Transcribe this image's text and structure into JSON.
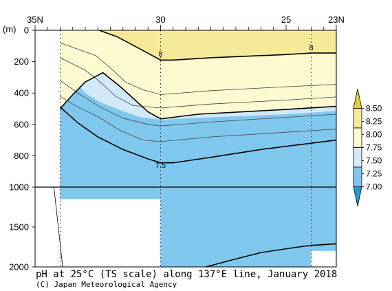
{
  "chart_data": {
    "type": "section-contour",
    "title": "pH at 25°C (TS scale) along 137°E line, January 2018",
    "credit": "(C) Japan Meteorological Agency",
    "ylabel": "(m)",
    "x_ticks": [
      {
        "lat": 35,
        "label": "35N"
      },
      {
        "lat": 30,
        "label": "30"
      },
      {
        "lat": 25,
        "label": "25"
      },
      {
        "lat": 23,
        "label": "23N"
      }
    ],
    "xlim": [
      35,
      23
    ],
    "y_ticks_upper": [
      0,
      200,
      400,
      600,
      800,
      1000
    ],
    "y_ticks_lower": [
      1500,
      2000
    ],
    "y_break": 1000,
    "stations_lat": [
      34,
      30,
      24
    ],
    "colorbar": {
      "levels": [
        "8.50",
        "8.25",
        "8.00",
        "7.75",
        "7.50",
        "7.25",
        "7.00"
      ],
      "colors": [
        "#e8d230",
        "#f5e99a",
        "#fdf9d0",
        "#d3e9f7",
        "#80c7ee",
        "#1e9ed8"
      ]
    },
    "fill_colors": {
      "above_8_25": "#f5e99a",
      "from_8_00_to_8_25": "#fdf9d0",
      "from_7_75_to_8_00": "#d3e9f7",
      "from_7_50_to_7_75": "#80c7ee"
    },
    "contours": [
      {
        "level": "8",
        "label": "8",
        "points": [
          [
            32.45,
            0
          ],
          [
            31.75,
            40
          ],
          [
            30.8,
            120
          ],
          [
            30,
            190
          ],
          [
            29.5,
            190
          ],
          [
            28,
            175
          ],
          [
            25,
            155
          ],
          [
            24,
            145
          ],
          [
            23,
            145
          ]
        ]
      },
      {
        "level": "7.75",
        "points": [
          [
            34,
            500
          ],
          [
            33.5,
            410
          ],
          [
            33,
            330
          ],
          [
            32.3,
            270
          ],
          [
            31.6,
            360
          ],
          [
            30.5,
            520
          ],
          [
            30,
            565
          ],
          [
            28.5,
            535
          ],
          [
            25,
            505
          ],
          [
            23,
            485
          ]
        ]
      },
      {
        "level": "7.5",
        "label": "7.5",
        "points": [
          [
            34,
            490
          ],
          [
            33.3,
            590
          ],
          [
            32.5,
            680
          ],
          [
            31.5,
            760
          ],
          [
            30.5,
            820
          ],
          [
            30,
            845
          ],
          [
            29.5,
            845
          ],
          [
            28,
            810
          ],
          [
            26,
            760
          ],
          [
            24,
            720
          ],
          [
            23,
            700
          ]
        ]
      },
      {
        "level": "7.5-deep",
        "points": [
          [
            28.2,
            2000
          ],
          [
            27,
            1900
          ],
          [
            26,
            1820
          ],
          [
            24.5,
            1750
          ],
          [
            24,
            1730
          ],
          [
            23,
            1710
          ]
        ]
      }
    ],
    "thin_contours": [
      [
        [
          34,
          80
        ],
        [
          33.3,
          120
        ],
        [
          32.6,
          160
        ],
        [
          32,
          240
        ],
        [
          31.4,
          330
        ],
        [
          30.7,
          380
        ],
        [
          30,
          410
        ],
        [
          28,
          385
        ],
        [
          25,
          360
        ],
        [
          23,
          345
        ]
      ],
      [
        [
          34,
          175
        ],
        [
          33.5,
          215
        ],
        [
          33,
          255
        ],
        [
          32.4,
          330
        ],
        [
          31.8,
          420
        ],
        [
          31.1,
          480
        ],
        [
          30,
          495
        ],
        [
          28,
          470
        ],
        [
          25,
          445
        ],
        [
          23,
          425
        ]
      ],
      [
        [
          34,
          320
        ],
        [
          33.2,
          410
        ],
        [
          32.4,
          490
        ],
        [
          31.5,
          560
        ],
        [
          30.5,
          600
        ],
        [
          30,
          610
        ],
        [
          28,
          585
        ],
        [
          25,
          555
        ],
        [
          23,
          535
        ]
      ],
      [
        [
          34,
          420
        ],
        [
          33.3,
          490
        ],
        [
          32.5,
          550
        ],
        [
          31.6,
          640
        ],
        [
          30.7,
          700
        ],
        [
          30,
          710
        ],
        [
          28,
          680
        ],
        [
          25,
          650
        ],
        [
          23,
          630
        ]
      ]
    ],
    "light_blue_edge": [
      [
        34,
        210
      ],
      [
        33.5,
        300
      ],
      [
        33,
        400
      ],
      [
        32.4,
        460
      ],
      [
        31.6,
        510
      ],
      [
        30.8,
        555
      ],
      [
        30,
        570
      ],
      [
        28,
        555
      ],
      [
        25,
        535
      ],
      [
        23,
        515
      ]
    ],
    "no_data_regions": [
      {
        "from_lat": 35,
        "to_lat": 34,
        "depth_top": 0,
        "depth_bottom": 2000
      },
      {
        "from_lat": 34,
        "to_lat": 30,
        "depth_top": 1150,
        "depth_bottom": 2000
      },
      {
        "from_lat": 24,
        "to_lat": 23,
        "depth_top": 1800,
        "depth_bottom": 2000
      }
    ]
  }
}
